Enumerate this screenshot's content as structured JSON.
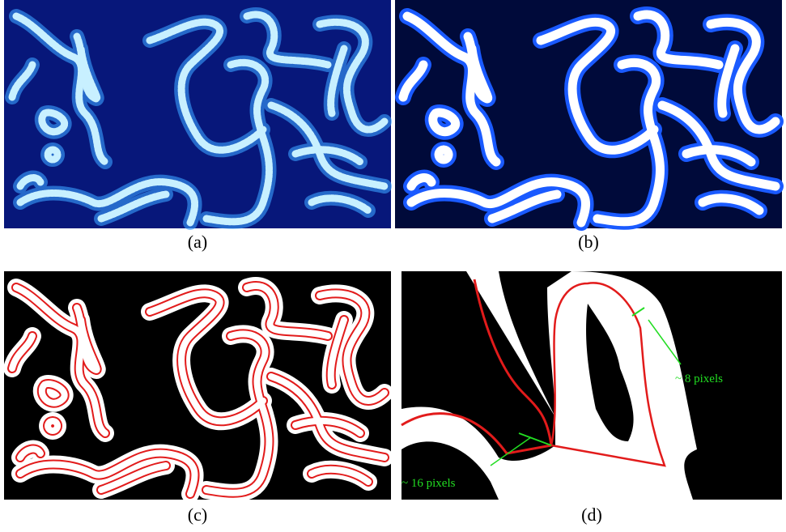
{
  "panels": [
    {
      "label": "(a)"
    },
    {
      "label": "(b)"
    },
    {
      "label": "(c)"
    },
    {
      "label": "(d)"
    }
  ],
  "annotations": [
    "~ 8 pixels",
    "~ 16 pixels"
  ]
}
